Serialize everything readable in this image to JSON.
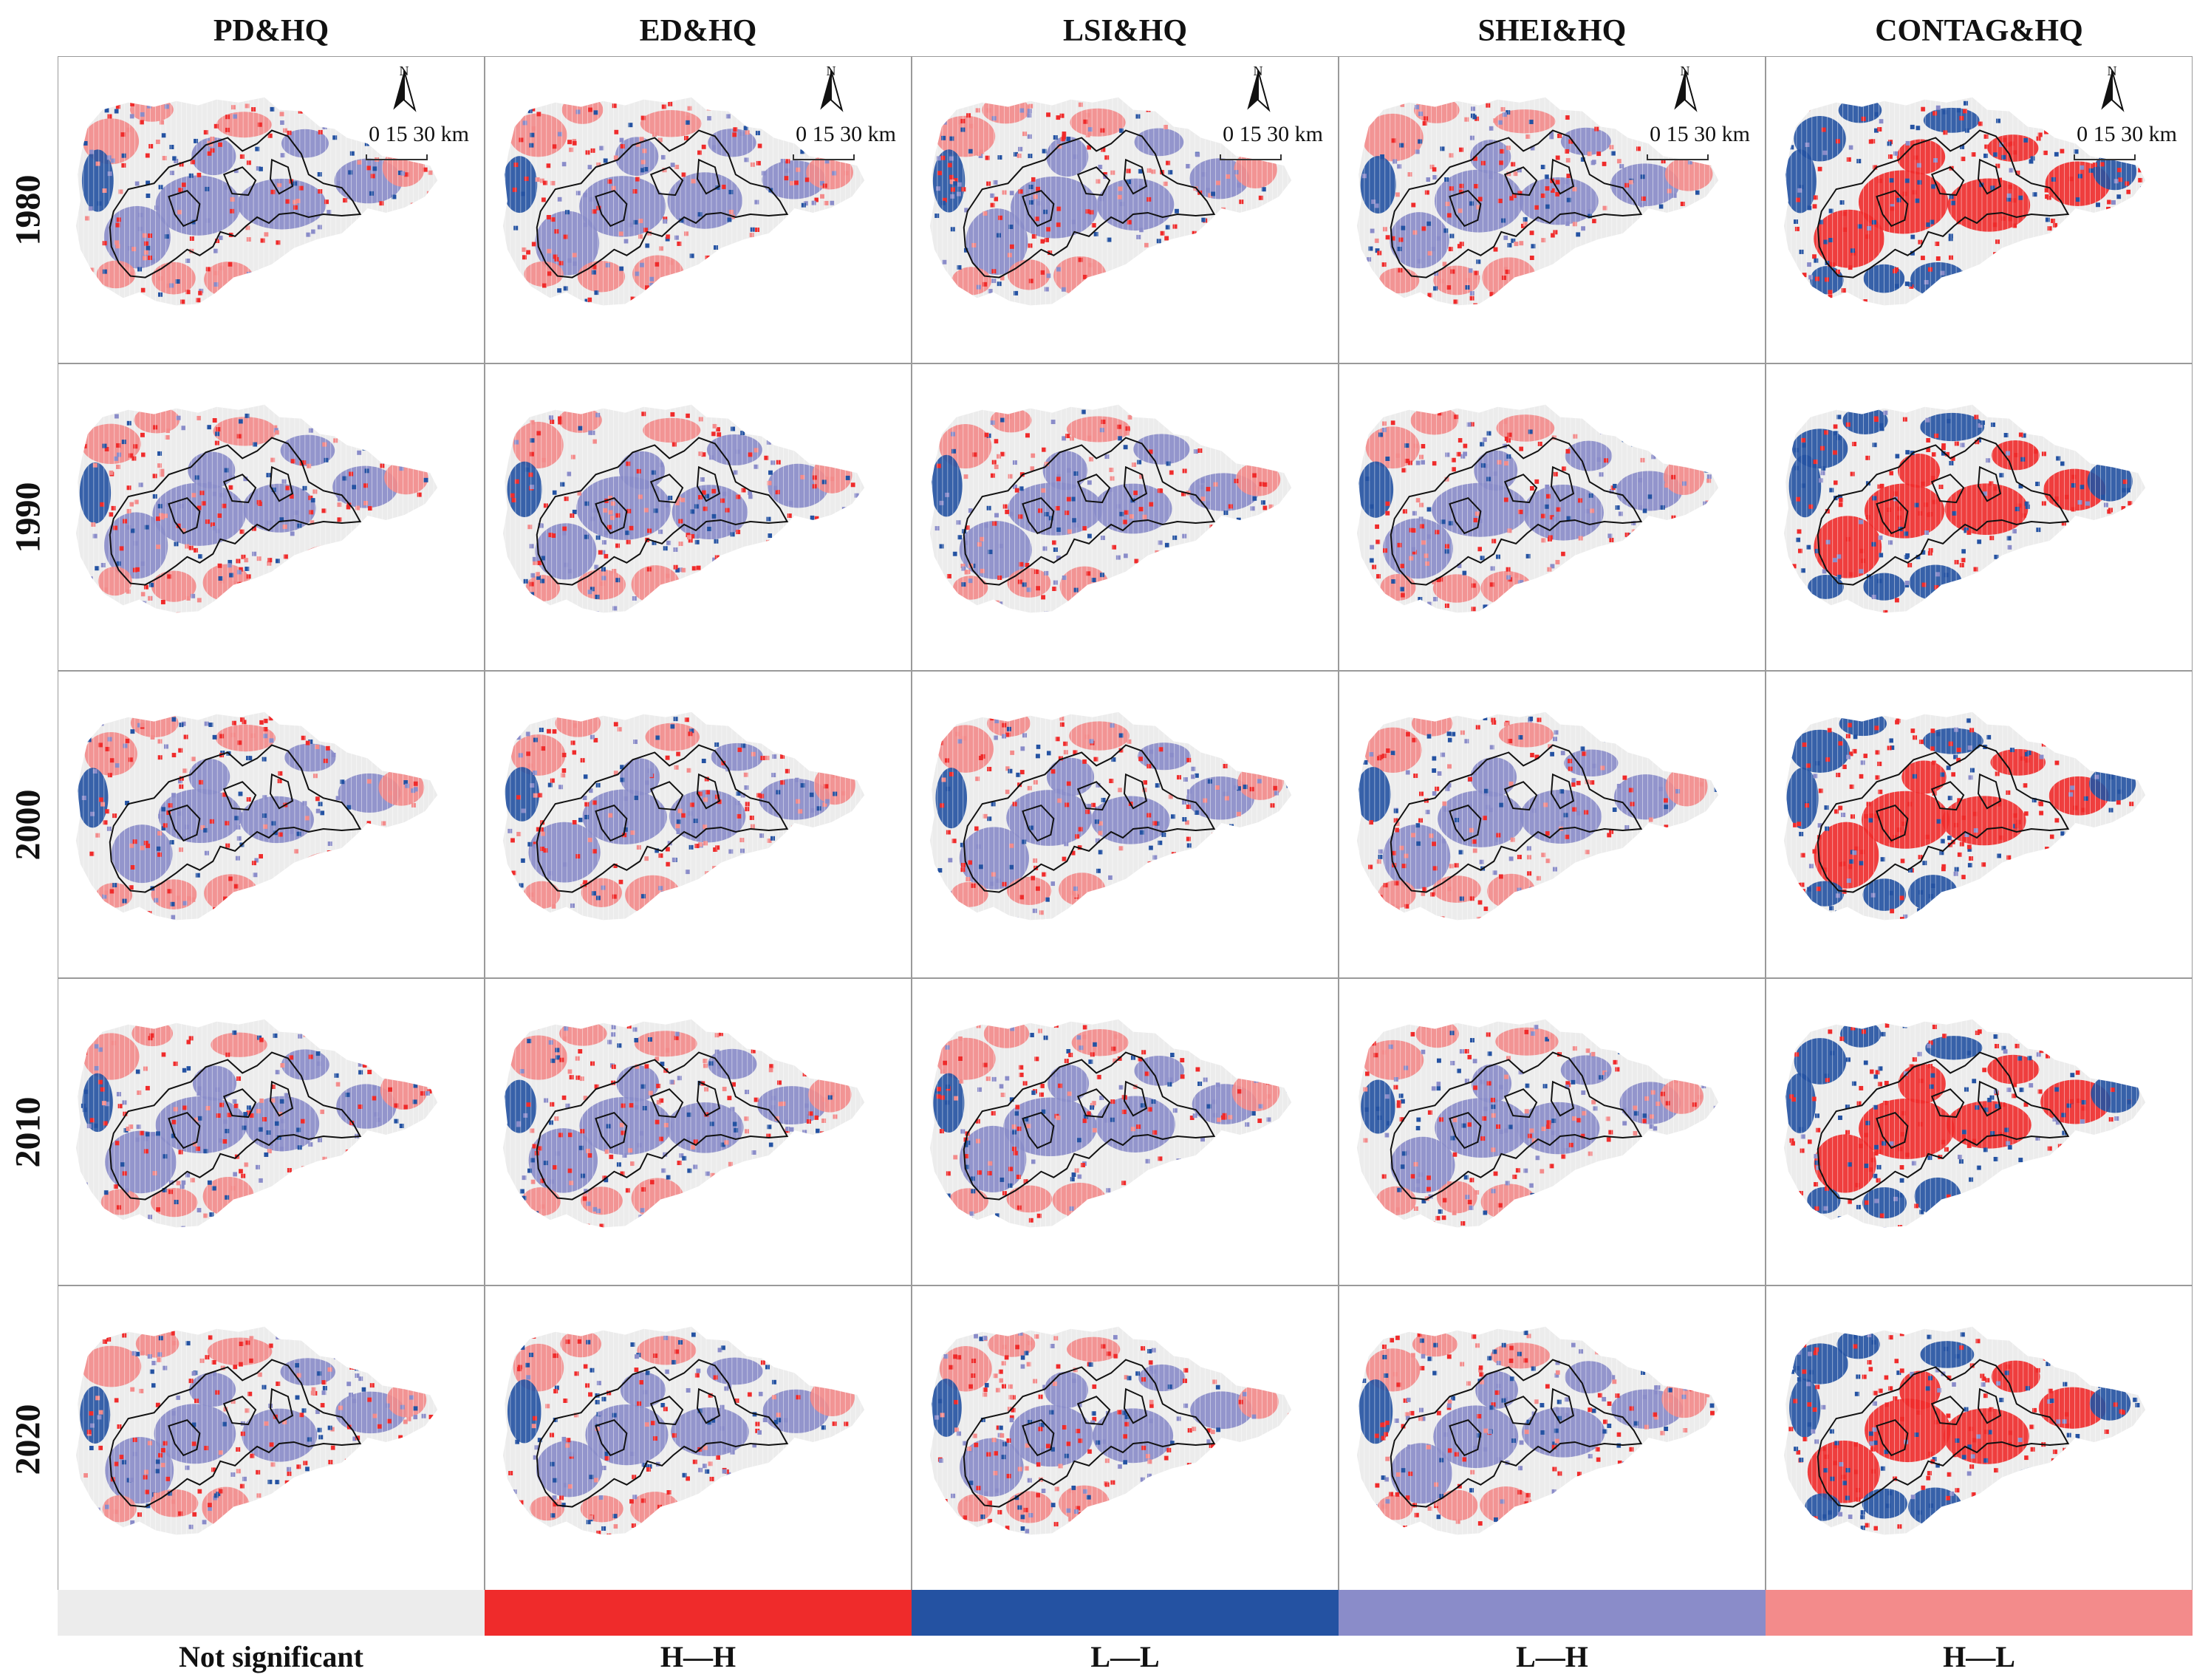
{
  "columns": [
    "PD&HQ",
    "ED&HQ",
    "LSI&HQ",
    "SHEI&HQ",
    "CONTAG&HQ"
  ],
  "rows": [
    "1980",
    "1990",
    "2000",
    "2010",
    "2020"
  ],
  "map_elements": {
    "north_label": "N",
    "scale_text": "0  15 30 km"
  },
  "legend": [
    {
      "label": "Not significant",
      "color": "#ececec"
    },
    {
      "label": "H—H",
      "color": "#ef2b2b"
    },
    {
      "label": "L—L",
      "color": "#2452a2"
    },
    {
      "label": "L—H",
      "color": "#8a8cc9"
    },
    {
      "label": "H—L",
      "color": "#f38b8b"
    }
  ],
  "colors": {
    "base": "#ececec",
    "hh": "#ef2b2b",
    "ll": "#2452a2",
    "lh": "#8a8cc9",
    "hl": "#f38b8b",
    "boundary": "#111111"
  }
}
